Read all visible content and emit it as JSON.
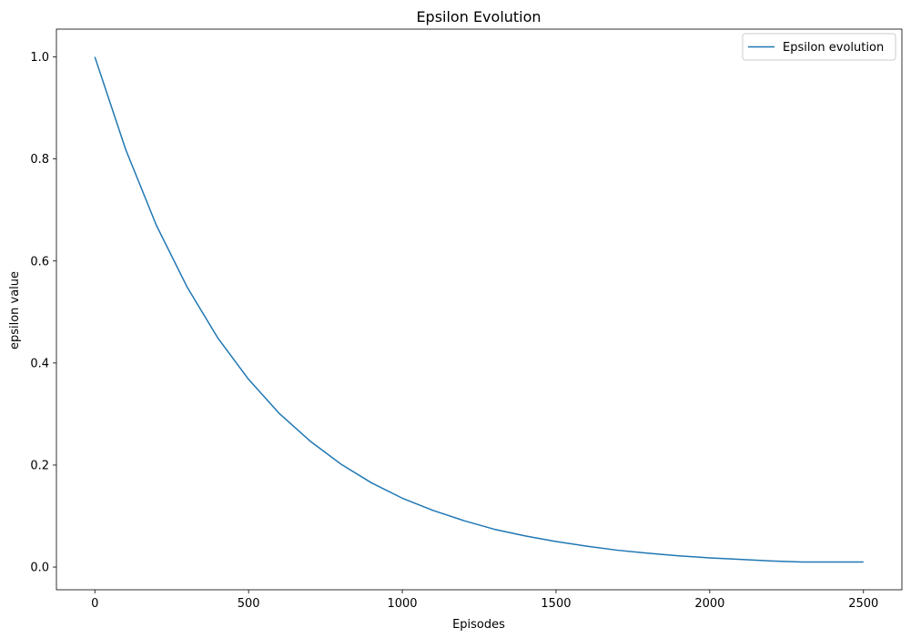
{
  "chart_data": {
    "type": "line",
    "title": "Epsilon Evolution",
    "xlabel": "Episodes",
    "ylabel": "epsilon value",
    "xlim": [
      -125,
      2625
    ],
    "ylim": [
      -0.0445,
      1.0545
    ],
    "xticks": [
      0,
      500,
      1000,
      1500,
      2000,
      2500
    ],
    "yticks": [
      0.0,
      0.2,
      0.4,
      0.6,
      0.8,
      1.0
    ],
    "xtick_labels": [
      "0",
      "500",
      "1000",
      "1500",
      "2000",
      "2500"
    ],
    "ytick_labels": [
      "0.0",
      "0.2",
      "0.4",
      "0.6",
      "0.8",
      "1.0"
    ],
    "grid": false,
    "legend_position": "top-right",
    "colors": {
      "series": "#1f77b4"
    },
    "series": [
      {
        "name": "Epsilon evolution",
        "x": [
          0,
          100,
          200,
          300,
          400,
          500,
          600,
          700,
          800,
          900,
          1000,
          1100,
          1200,
          1300,
          1400,
          1500,
          1600,
          1700,
          1800,
          1900,
          2000,
          2100,
          2200,
          2300,
          2400,
          2500
        ],
        "y": [
          1.0,
          0.819,
          0.67,
          0.549,
          0.449,
          0.368,
          0.301,
          0.247,
          0.202,
          0.165,
          0.135,
          0.111,
          0.091,
          0.074,
          0.061,
          0.05,
          0.041,
          0.033,
          0.027,
          0.022,
          0.018,
          0.015,
          0.012,
          0.01,
          0.01,
          0.01
        ]
      }
    ]
  }
}
